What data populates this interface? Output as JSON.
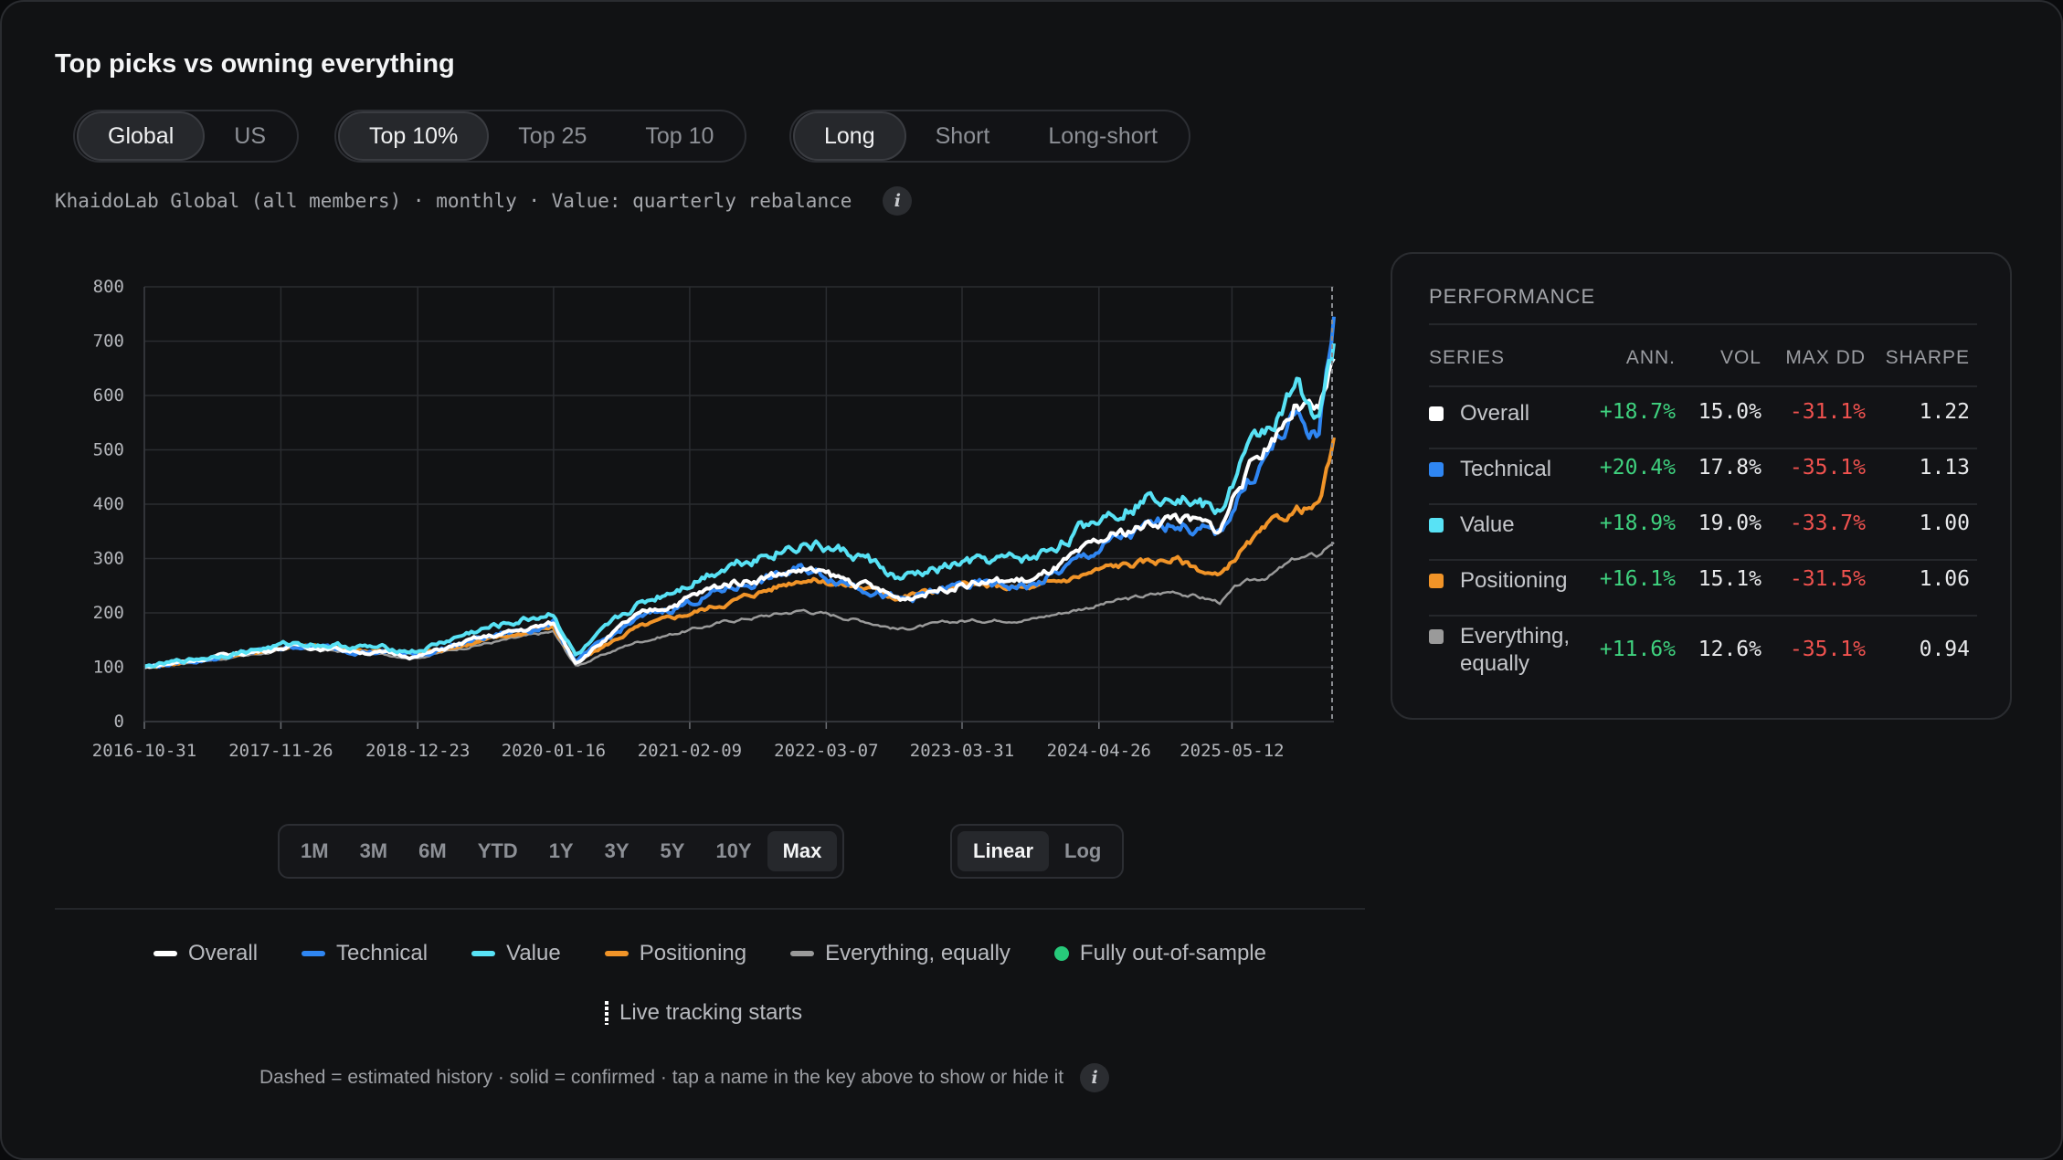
{
  "title": "Top picks vs owning everything",
  "universe_toggle": {
    "options": [
      "Global",
      "US"
    ],
    "selected": "Global"
  },
  "size_toggle": {
    "options": [
      "Top 10%",
      "Top 25",
      "Top 10"
    ],
    "selected": "Top 10%"
  },
  "side_toggle": {
    "options": [
      "Long",
      "Short",
      "Long-short"
    ],
    "selected": "Long"
  },
  "subtitle": "KhaidoLab Global (all members) · monthly · Value: quarterly rebalance",
  "info_glyph": "i",
  "range_buttons": {
    "options": [
      "1M",
      "3M",
      "6M",
      "YTD",
      "1Y",
      "3Y",
      "5Y",
      "10Y",
      "Max"
    ],
    "selected": "Max"
  },
  "scale_buttons": {
    "options": [
      "Linear",
      "Log"
    ],
    "selected": "Linear"
  },
  "legend": {
    "items": [
      {
        "label": "Overall",
        "color": "#ffffff"
      },
      {
        "label": "Technical",
        "color": "#2f86f2"
      },
      {
        "label": "Value",
        "color": "#58e2f5"
      },
      {
        "label": "Positioning",
        "color": "#f19428"
      },
      {
        "label": "Everything, equally",
        "color": "#9a9a9a"
      }
    ],
    "oos_label": "Fully out-of-sample",
    "oos_color": "#27c97a",
    "live_label": "Live tracking starts"
  },
  "footnote": "Dashed = estimated history · solid = confirmed · tap a name in the key above to show or hide it",
  "performance": {
    "title": "PERFORMANCE",
    "headers": {
      "series": "SERIES",
      "ann": "ANN.",
      "vol": "VOL",
      "maxdd": "MAX DD",
      "sharpe": "SHARPE"
    },
    "rows": [
      {
        "name": "Overall",
        "color": "#ffffff",
        "ann": "+18.7%",
        "vol": "15.0%",
        "maxdd": "-31.1%",
        "sharpe": "1.22"
      },
      {
        "name": "Technical",
        "color": "#2f86f2",
        "ann": "+20.4%",
        "vol": "17.8%",
        "maxdd": "-35.1%",
        "sharpe": "1.13"
      },
      {
        "name": "Value",
        "color": "#58e2f5",
        "ann": "+18.9%",
        "vol": "19.0%",
        "maxdd": "-33.7%",
        "sharpe": "1.00"
      },
      {
        "name": "Positioning",
        "color": "#f19428",
        "ann": "+16.1%",
        "vol": "15.1%",
        "maxdd": "-31.5%",
        "sharpe": "1.06"
      },
      {
        "name": "Everything, equally",
        "color": "#9a9a9a",
        "ann": "+11.6%",
        "vol": "12.6%",
        "maxdd": "-35.1%",
        "sharpe": "0.94"
      }
    ],
    "positive_color": "#3fd27f",
    "negative_color": "#f0524f"
  },
  "chart_data": {
    "type": "line",
    "y_ticks": [
      0,
      100,
      200,
      300,
      400,
      500,
      600,
      700,
      800
    ],
    "ylim": [
      0,
      800
    ],
    "x_ticks": [
      "2016-10-31",
      "2017-11-26",
      "2018-12-23",
      "2020-01-16",
      "2021-02-09",
      "2022-03-07",
      "2023-03-31",
      "2024-04-26",
      "2025-05-12"
    ],
    "x_range": [
      "2016-10-31",
      "2026-02-28"
    ],
    "grid": true,
    "series": [
      {
        "name": "Everything, equally",
        "color": "#9a9a9a",
        "noise": 3,
        "points": [
          [
            "2016-10-31",
            100
          ],
          [
            "2017-06-01",
            115
          ],
          [
            "2018-01-15",
            135
          ],
          [
            "2018-12-23",
            118
          ],
          [
            "2019-06-01",
            140
          ],
          [
            "2020-01-15",
            165
          ],
          [
            "2020-03-20",
            102
          ],
          [
            "2020-09-01",
            145
          ],
          [
            "2021-06-01",
            185
          ],
          [
            "2022-01-01",
            205
          ],
          [
            "2022-06-30",
            185
          ],
          [
            "2022-10-01",
            170
          ],
          [
            "2023-03-31",
            185
          ],
          [
            "2023-10-27",
            190
          ],
          [
            "2024-06-01",
            220
          ],
          [
            "2024-12-01",
            240
          ],
          [
            "2025-04-08",
            220
          ],
          [
            "2025-06-01",
            250
          ],
          [
            "2025-09-01",
            270
          ],
          [
            "2025-11-15",
            300
          ],
          [
            "2026-01-15",
            305
          ],
          [
            "2026-02-28",
            335
          ]
        ]
      },
      {
        "name": "Positioning",
        "color": "#f19428",
        "noise": 4,
        "points": [
          [
            "2016-10-31",
            100
          ],
          [
            "2017-06-01",
            118
          ],
          [
            "2018-01-15",
            140
          ],
          [
            "2018-12-23",
            125
          ],
          [
            "2019-06-01",
            145
          ],
          [
            "2020-01-15",
            175
          ],
          [
            "2020-03-20",
            108
          ],
          [
            "2020-09-01",
            170
          ],
          [
            "2021-06-01",
            220
          ],
          [
            "2022-01-01",
            265
          ],
          [
            "2022-06-30",
            245
          ],
          [
            "2022-10-01",
            230
          ],
          [
            "2023-03-31",
            250
          ],
          [
            "2023-10-27",
            245
          ],
          [
            "2024-06-01",
            285
          ],
          [
            "2024-12-01",
            300
          ],
          [
            "2025-04-08",
            265
          ],
          [
            "2025-06-01",
            310
          ],
          [
            "2025-09-01",
            360
          ],
          [
            "2025-11-15",
            390
          ],
          [
            "2026-01-15",
            395
          ],
          [
            "2026-02-28",
            510
          ]
        ]
      },
      {
        "name": "Technical",
        "color": "#2f86f2",
        "noise": 6,
        "points": [
          [
            "2016-10-31",
            100
          ],
          [
            "2017-06-01",
            118
          ],
          [
            "2018-01-15",
            140
          ],
          [
            "2018-12-23",
            122
          ],
          [
            "2019-06-01",
            150
          ],
          [
            "2020-01-15",
            180
          ],
          [
            "2020-03-20",
            110
          ],
          [
            "2020-09-01",
            185
          ],
          [
            "2021-06-01",
            245
          ],
          [
            "2022-01-01",
            280
          ],
          [
            "2022-06-30",
            250
          ],
          [
            "2022-10-01",
            220
          ],
          [
            "2023-03-31",
            250
          ],
          [
            "2023-10-27",
            250
          ],
          [
            "2024-06-01",
            330
          ],
          [
            "2024-12-01",
            370
          ],
          [
            "2025-04-08",
            340
          ],
          [
            "2025-06-01",
            420
          ],
          [
            "2025-09-01",
            500
          ],
          [
            "2025-11-15",
            560
          ],
          [
            "2026-01-15",
            520
          ],
          [
            "2026-02-28",
            760
          ]
        ]
      },
      {
        "name": "Overall",
        "color": "#ffffff",
        "noise": 5,
        "points": [
          [
            "2016-10-31",
            100
          ],
          [
            "2017-06-01",
            120
          ],
          [
            "2018-01-15",
            140
          ],
          [
            "2018-12-23",
            120
          ],
          [
            "2019-06-01",
            150
          ],
          [
            "2020-01-15",
            180
          ],
          [
            "2020-03-20",
            110
          ],
          [
            "2020-09-01",
            190
          ],
          [
            "2021-06-01",
            255
          ],
          [
            "2022-01-01",
            280
          ],
          [
            "2022-06-30",
            250
          ],
          [
            "2022-10-01",
            225
          ],
          [
            "2023-03-31",
            255
          ],
          [
            "2023-10-27",
            260
          ],
          [
            "2024-06-01",
            340
          ],
          [
            "2024-12-01",
            380
          ],
          [
            "2025-04-08",
            350
          ],
          [
            "2025-06-01",
            440
          ],
          [
            "2025-09-01",
            520
          ],
          [
            "2025-11-15",
            590
          ],
          [
            "2026-01-15",
            560
          ],
          [
            "2026-02-28",
            665
          ]
        ]
      },
      {
        "name": "Value",
        "color": "#58e2f5",
        "noise": 6,
        "points": [
          [
            "2016-10-31",
            100
          ],
          [
            "2017-06-01",
            122
          ],
          [
            "2018-01-15",
            145
          ],
          [
            "2018-12-23",
            130
          ],
          [
            "2019-06-01",
            165
          ],
          [
            "2020-01-15",
            200
          ],
          [
            "2020-03-20",
            120
          ],
          [
            "2020-09-01",
            210
          ],
          [
            "2021-06-01",
            290
          ],
          [
            "2022-01-01",
            330
          ],
          [
            "2022-06-30",
            300
          ],
          [
            "2022-10-01",
            260
          ],
          [
            "2023-03-31",
            290
          ],
          [
            "2023-10-27",
            300
          ],
          [
            "2024-06-01",
            390
          ],
          [
            "2024-12-01",
            430
          ],
          [
            "2025-04-08",
            380
          ],
          [
            "2025-06-01",
            470
          ],
          [
            "2025-09-01",
            550
          ],
          [
            "2025-11-15",
            610
          ],
          [
            "2026-01-15",
            570
          ],
          [
            "2026-02-28",
            680
          ]
        ]
      }
    ]
  }
}
